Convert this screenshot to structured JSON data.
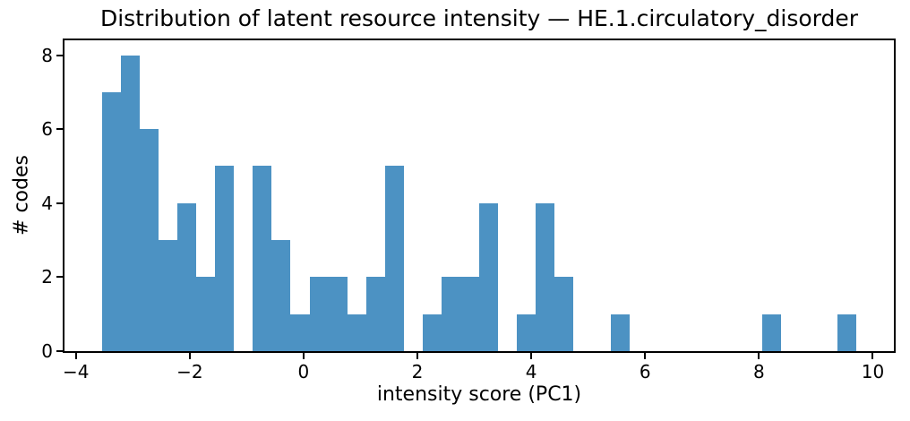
{
  "chart_data": {
    "type": "bar",
    "subtype": "histogram",
    "title": "Distribution of latent resource intensity — HE.1.circulatory_disorder",
    "xlabel": "intensity score (PC1)",
    "ylabel": "# codes",
    "bin_start": -3.54,
    "bin_width": 0.33125,
    "counts": [
      7,
      8,
      6,
      3,
      4,
      2,
      5,
      0,
      5,
      3,
      1,
      2,
      2,
      1,
      2,
      5,
      0,
      1,
      2,
      2,
      4,
      0,
      1,
      4,
      2,
      0,
      0,
      1,
      0,
      0,
      0,
      0,
      0,
      0,
      0,
      1,
      0,
      0,
      0,
      1
    ],
    "xlim": [
      -4.2,
      10.37
    ],
    "ylim": [
      0,
      8.4
    ],
    "xticks": [
      -4,
      -2,
      0,
      2,
      4,
      6,
      8,
      10
    ],
    "xtick_labels": [
      "−4",
      "−2",
      "0",
      "2",
      "4",
      "6",
      "8",
      "10"
    ],
    "yticks": [
      0,
      2,
      4,
      6,
      8
    ],
    "ytick_labels": [
      "0",
      "2",
      "4",
      "6",
      "8"
    ],
    "bar_color": "#4C92C3",
    "axis_color": "#000000",
    "background_color": "#ffffff",
    "grid": false,
    "legend": null
  }
}
